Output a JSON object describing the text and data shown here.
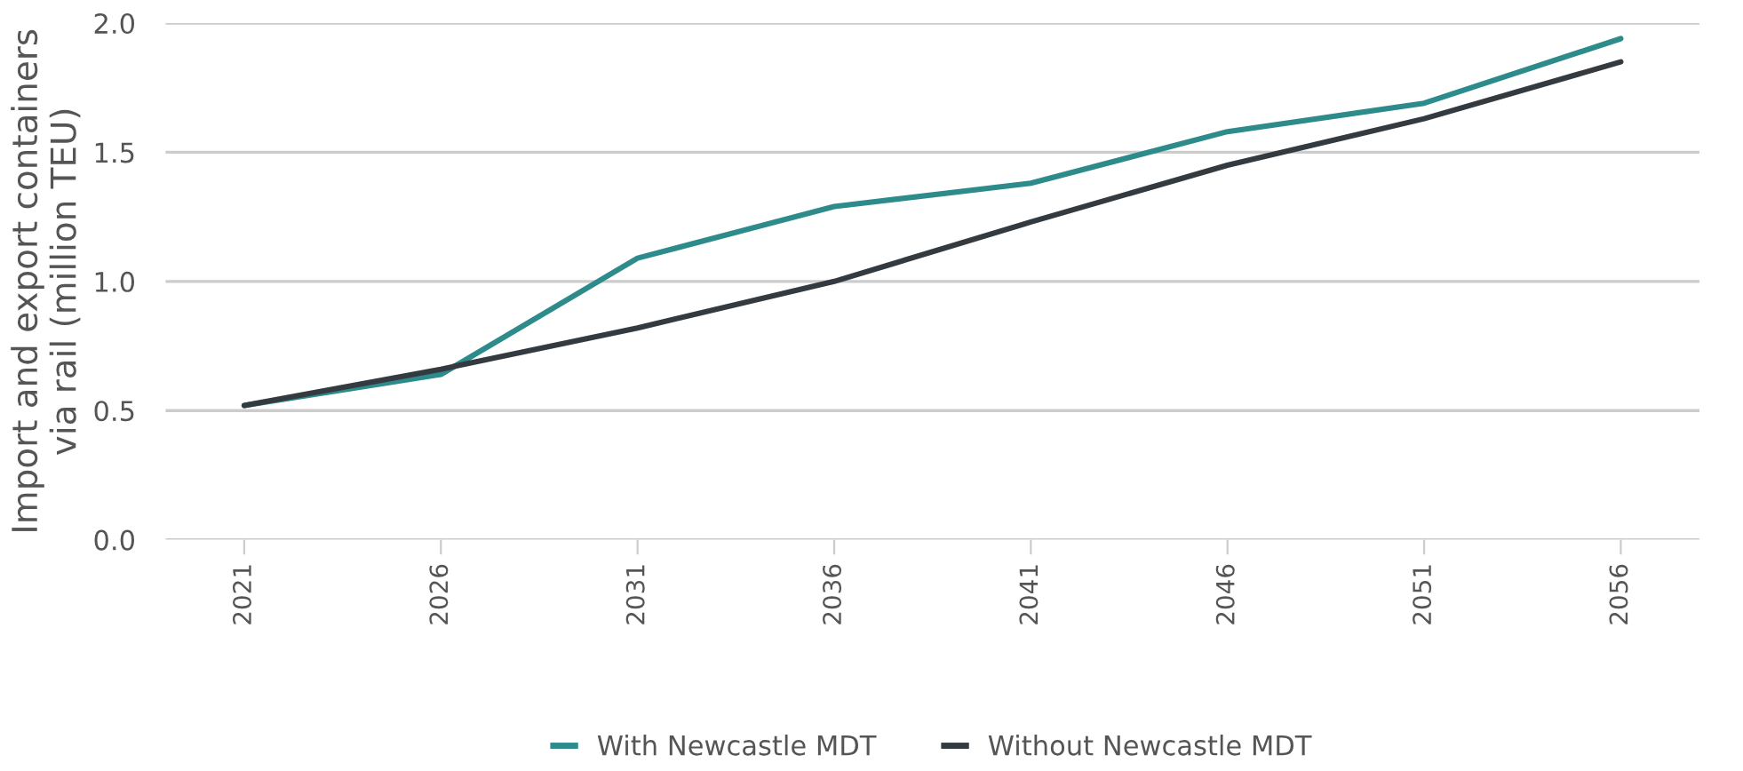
{
  "chart_data": {
    "type": "line",
    "ylabel": "Import and export containers\nvia rail (million TEU)",
    "categories": [
      "2021",
      "2026",
      "2031",
      "2036",
      "2041",
      "2046",
      "2051",
      "2056"
    ],
    "series": [
      {
        "name": "With Newcastle MDT",
        "color": "#2e8b8b",
        "values": [
          0.52,
          0.64,
          1.09,
          1.29,
          1.38,
          1.58,
          1.69,
          1.94
        ]
      },
      {
        "name": "Without Newcastle MDT",
        "color": "#333b40",
        "values": [
          0.52,
          0.66,
          0.82,
          1.0,
          1.23,
          1.45,
          1.63,
          1.85
        ]
      }
    ],
    "ylim": [
      0,
      2
    ],
    "yticks": [
      {
        "value": 0,
        "label": "0.0"
      },
      0.5,
      {
        "value": 1,
        "label": "1.0"
      },
      1.5,
      {
        "value": 2,
        "label": "2.0"
      }
    ],
    "grid": "y",
    "legend": "bottom",
    "marker": "none",
    "line_style": "solid"
  }
}
